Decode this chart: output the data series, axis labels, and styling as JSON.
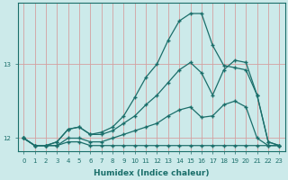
{
  "xlabel": "Humidex (Indice chaleur)",
  "bg_color": "#cceaea",
  "line_color": "#1a6e6a",
  "grid_color_v": "#d4a0a0",
  "grid_color_h": "#d4a0a0",
  "xlim": [
    -0.5,
    23.5
  ],
  "ylim": [
    11.82,
    13.82
  ],
  "yticks": [
    12,
    13
  ],
  "xticks": [
    0,
    1,
    2,
    3,
    4,
    5,
    6,
    7,
    8,
    9,
    10,
    11,
    12,
    13,
    14,
    15,
    16,
    17,
    18,
    19,
    20,
    21,
    22,
    23
  ],
  "series": [
    [
      12.0,
      11.9,
      11.9,
      11.9,
      11.95,
      11.95,
      11.9,
      11.9,
      11.9,
      11.9,
      11.9,
      11.9,
      11.9,
      11.9,
      11.9,
      11.9,
      11.9,
      11.9,
      11.9,
      11.9,
      11.9,
      11.9,
      11.9,
      11.9
    ],
    [
      12.0,
      11.9,
      11.9,
      11.9,
      12.0,
      12.0,
      11.95,
      11.95,
      12.0,
      12.05,
      12.1,
      12.15,
      12.2,
      12.3,
      12.38,
      12.42,
      12.28,
      12.3,
      12.45,
      12.5,
      12.42,
      12.0,
      11.9,
      11.9
    ],
    [
      12.0,
      11.9,
      11.9,
      11.95,
      12.12,
      12.15,
      12.05,
      12.05,
      12.1,
      12.2,
      12.3,
      12.45,
      12.58,
      12.75,
      12.92,
      13.02,
      12.88,
      12.58,
      12.92,
      13.05,
      13.02,
      12.58,
      11.95,
      11.9
    ],
    [
      12.0,
      11.9,
      11.9,
      11.95,
      12.12,
      12.15,
      12.05,
      12.08,
      12.15,
      12.3,
      12.55,
      12.82,
      13.0,
      13.32,
      13.58,
      13.68,
      13.68,
      13.25,
      12.98,
      12.95,
      12.92,
      12.58,
      11.95,
      11.9
    ]
  ]
}
